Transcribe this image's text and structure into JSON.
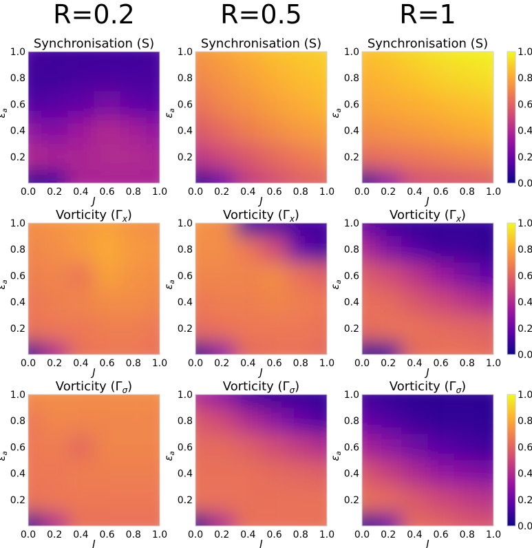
{
  "figure": {
    "column_titles": [
      "R=0.2",
      "R=0.5",
      "R=1"
    ]
  },
  "colormap": {
    "name": "plasma",
    "stops": [
      "#0d0887",
      "#5c01a6",
      "#9c179e",
      "#cc4778",
      "#ed7953",
      "#fdb42f",
      "#f0f921"
    ]
  },
  "chart_data": [
    {
      "type": "heatmap",
      "title": "Synchronisation (S)",
      "column": "R=0.2",
      "row": 0,
      "xlabel": "J",
      "ylabel": "εa",
      "xlim": [
        0,
        1
      ],
      "ylim": [
        0,
        1
      ],
      "clim": [
        0,
        1
      ],
      "grid": false,
      "xticks": [
        "0.0",
        "0.2",
        "0.4",
        "0.6",
        "0.8",
        "1.0"
      ],
      "yticks": [
        "0.2",
        "0.4",
        "0.6",
        "0.8",
        "1.0"
      ],
      "x": [
        0.0,
        0.2,
        0.4,
        0.6,
        0.8,
        1.0
      ],
      "y": [
        1.0,
        0.8,
        0.6,
        0.4,
        0.2,
        0.0
      ],
      "z": [
        [
          0.12,
          0.1,
          0.1,
          0.11,
          0.1,
          0.12
        ],
        [
          0.1,
          0.1,
          0.12,
          0.12,
          0.12,
          0.12
        ],
        [
          0.14,
          0.16,
          0.18,
          0.24,
          0.18,
          0.16
        ],
        [
          0.3,
          0.26,
          0.34,
          0.4,
          0.36,
          0.3
        ],
        [
          0.4,
          0.38,
          0.38,
          0.4,
          0.4,
          0.38
        ],
        [
          0.05,
          0.1,
          0.38,
          0.38,
          0.38,
          0.38
        ]
      ],
      "colorbar": false
    },
    {
      "type": "heatmap",
      "title": "Synchronisation (S)",
      "column": "R=0.5",
      "row": 0,
      "xlabel": "J",
      "ylabel": "εa",
      "xlim": [
        0,
        1
      ],
      "ylim": [
        0,
        1
      ],
      "clim": [
        0,
        1
      ],
      "grid": false,
      "xticks": [
        "0.0",
        "0.2",
        "0.4",
        "0.6",
        "0.8",
        "1.0"
      ],
      "yticks": [
        "0.2",
        "0.4",
        "0.6",
        "0.8",
        "1.0"
      ],
      "x": [
        0.0,
        0.2,
        0.4,
        0.6,
        0.8,
        1.0
      ],
      "y": [
        1.0,
        0.8,
        0.6,
        0.4,
        0.2,
        0.0
      ],
      "z": [
        [
          0.74,
          0.78,
          0.82,
          0.86,
          0.88,
          0.9
        ],
        [
          0.7,
          0.74,
          0.78,
          0.82,
          0.85,
          0.87
        ],
        [
          0.64,
          0.7,
          0.74,
          0.78,
          0.81,
          0.84
        ],
        [
          0.56,
          0.62,
          0.68,
          0.72,
          0.76,
          0.78
        ],
        [
          0.44,
          0.5,
          0.56,
          0.62,
          0.66,
          0.7
        ],
        [
          0.05,
          0.2,
          0.46,
          0.52,
          0.58,
          0.6
        ]
      ],
      "colorbar": false
    },
    {
      "type": "heatmap",
      "title": "Synchronisation (S)",
      "column": "R=1",
      "row": 0,
      "xlabel": "J",
      "ylabel": "εa",
      "xlim": [
        0,
        1
      ],
      "ylim": [
        0,
        1
      ],
      "clim": [
        0,
        1
      ],
      "grid": false,
      "xticks": [
        "0.0",
        "0.2",
        "0.4",
        "0.6",
        "0.8",
        "1.0"
      ],
      "yticks": [
        "0.2",
        "0.4",
        "0.6",
        "0.8",
        "1.0"
      ],
      "x": [
        0.0,
        0.2,
        0.4,
        0.6,
        0.8,
        1.0
      ],
      "y": [
        1.0,
        0.8,
        0.6,
        0.4,
        0.2,
        0.0
      ],
      "z": [
        [
          0.86,
          0.88,
          0.92,
          0.95,
          0.97,
          0.98
        ],
        [
          0.82,
          0.84,
          0.87,
          0.9,
          0.92,
          0.94
        ],
        [
          0.78,
          0.8,
          0.82,
          0.84,
          0.86,
          0.88
        ],
        [
          0.72,
          0.74,
          0.76,
          0.78,
          0.8,
          0.82
        ],
        [
          0.62,
          0.64,
          0.66,
          0.68,
          0.7,
          0.72
        ],
        [
          0.05,
          0.3,
          0.52,
          0.54,
          0.56,
          0.58
        ]
      ],
      "colorbar": true,
      "colorbar_ticks": [
        "0.0",
        "0.2",
        "0.4",
        "0.6",
        "0.8",
        "1.0"
      ]
    },
    {
      "type": "heatmap",
      "title": "Vorticity (Γx)",
      "column": "R=0.2",
      "row": 1,
      "xlabel": "J",
      "ylabel": "εa",
      "xlim": [
        0,
        1
      ],
      "ylim": [
        0,
        1
      ],
      "clim": [
        0,
        1
      ],
      "grid": false,
      "xticks": [
        "0.0",
        "0.2",
        "0.4",
        "0.6",
        "0.8",
        "1.0"
      ],
      "yticks": [
        "0.2",
        "0.4",
        "0.6",
        "0.8",
        "1.0"
      ],
      "x": [
        0.0,
        0.2,
        0.4,
        0.6,
        0.8,
        1.0
      ],
      "y": [
        1.0,
        0.8,
        0.6,
        0.4,
        0.2,
        0.0
      ],
      "z": [
        [
          0.72,
          0.74,
          0.76,
          0.78,
          0.74,
          0.72
        ],
        [
          0.7,
          0.72,
          0.76,
          0.8,
          0.76,
          0.74
        ],
        [
          0.68,
          0.7,
          0.66,
          0.78,
          0.74,
          0.72
        ],
        [
          0.66,
          0.68,
          0.7,
          0.72,
          0.72,
          0.7
        ],
        [
          0.64,
          0.66,
          0.66,
          0.68,
          0.68,
          0.66
        ],
        [
          0.05,
          0.4,
          0.64,
          0.66,
          0.66,
          0.64
        ]
      ],
      "colorbar": false
    },
    {
      "type": "heatmap",
      "title": "Vorticity (Γx)",
      "column": "R=0.5",
      "row": 1,
      "xlabel": "J",
      "ylabel": "εa",
      "xlim": [
        0,
        1
      ],
      "ylim": [
        0,
        1
      ],
      "clim": [
        0,
        1
      ],
      "grid": false,
      "xticks": [
        "0.0",
        "0.2",
        "0.4",
        "0.6",
        "0.8",
        "1.0"
      ],
      "yticks": [
        "0.2",
        "0.4",
        "0.6",
        "0.8",
        "1.0"
      ],
      "x": [
        0.0,
        0.2,
        0.4,
        0.6,
        0.8,
        1.0
      ],
      "y": [
        1.0,
        0.8,
        0.6,
        0.4,
        0.2,
        0.0
      ],
      "z": [
        [
          0.74,
          0.72,
          0.1,
          0.14,
          0.1,
          0.12
        ],
        [
          0.72,
          0.72,
          0.66,
          0.52,
          0.2,
          0.1
        ],
        [
          0.7,
          0.7,
          0.7,
          0.72,
          0.64,
          0.58
        ],
        [
          0.66,
          0.68,
          0.68,
          0.7,
          0.68,
          0.66
        ],
        [
          0.62,
          0.64,
          0.66,
          0.66,
          0.66,
          0.64
        ],
        [
          0.05,
          0.3,
          0.62,
          0.64,
          0.64,
          0.62
        ]
      ],
      "colorbar": false
    },
    {
      "type": "heatmap",
      "title": "Vorticity (Γx)",
      "column": "R=1",
      "row": 1,
      "xlabel": "J",
      "ylabel": "εa",
      "xlim": [
        0,
        1
      ],
      "ylim": [
        0,
        1
      ],
      "clim": [
        0,
        1
      ],
      "grid": false,
      "xticks": [
        "0.0",
        "0.2",
        "0.4",
        "0.6",
        "0.8",
        "1.0"
      ],
      "yticks": [
        "0.2",
        "0.4",
        "0.6",
        "0.8",
        "1.0"
      ],
      "x": [
        0.0,
        0.2,
        0.4,
        0.6,
        0.8,
        1.0
      ],
      "y": [
        1.0,
        0.8,
        0.6,
        0.4,
        0.2,
        0.0
      ],
      "z": [
        [
          0.2,
          0.1,
          0.08,
          0.08,
          0.08,
          0.08
        ],
        [
          0.4,
          0.26,
          0.16,
          0.1,
          0.1,
          0.06
        ],
        [
          0.58,
          0.52,
          0.44,
          0.34,
          0.24,
          0.16
        ],
        [
          0.64,
          0.62,
          0.56,
          0.5,
          0.44,
          0.38
        ],
        [
          0.62,
          0.64,
          0.64,
          0.62,
          0.6,
          0.58
        ],
        [
          0.05,
          0.1,
          0.62,
          0.64,
          0.64,
          0.62
        ]
      ],
      "colorbar": true,
      "colorbar_ticks": [
        "0.0",
        "0.2",
        "0.4",
        "0.6",
        "0.8",
        "1.0"
      ]
    },
    {
      "type": "heatmap",
      "title": "Vorticity (Γσ)",
      "column": "R=0.2",
      "row": 2,
      "xlabel": "J",
      "ylabel": "εa",
      "xlim": [
        0,
        1
      ],
      "ylim": [
        0,
        1
      ],
      "clim": [
        0,
        1
      ],
      "grid": false,
      "xticks": [
        "0.0",
        "0.2",
        "0.4",
        "0.6",
        "0.8",
        "1.0"
      ],
      "yticks": [
        "0.2",
        "0.4",
        "0.6",
        "0.8",
        "1.0"
      ],
      "x": [
        0.0,
        0.2,
        0.4,
        0.6,
        0.8,
        1.0
      ],
      "y": [
        1.0,
        0.8,
        0.6,
        0.4,
        0.2,
        0.0
      ],
      "z": [
        [
          0.72,
          0.72,
          0.72,
          0.72,
          0.72,
          0.72
        ],
        [
          0.66,
          0.7,
          0.7,
          0.7,
          0.7,
          0.7
        ],
        [
          0.66,
          0.68,
          0.62,
          0.7,
          0.7,
          0.7
        ],
        [
          0.66,
          0.66,
          0.68,
          0.68,
          0.68,
          0.68
        ],
        [
          0.64,
          0.66,
          0.66,
          0.66,
          0.66,
          0.66
        ],
        [
          0.05,
          0.4,
          0.64,
          0.64,
          0.64,
          0.64
        ]
      ],
      "colorbar": false
    },
    {
      "type": "heatmap",
      "title": "Vorticity (Γσ)",
      "column": "R=0.5",
      "row": 2,
      "xlabel": "J",
      "ylabel": "εa",
      "xlim": [
        0,
        1
      ],
      "ylim": [
        0,
        1
      ],
      "clim": [
        0,
        1
      ],
      "grid": false,
      "xticks": [
        "0.0",
        "0.2",
        "0.4",
        "0.6",
        "0.8",
        "1.0"
      ],
      "yticks": [
        "0.2",
        "0.4",
        "0.6",
        "0.8",
        "1.0"
      ],
      "x": [
        0.0,
        0.2,
        0.4,
        0.6,
        0.8,
        1.0
      ],
      "y": [
        1.0,
        0.8,
        0.6,
        0.4,
        0.2,
        0.0
      ],
      "z": [
        [
          0.4,
          0.3,
          0.12,
          0.08,
          0.08,
          0.08
        ],
        [
          0.56,
          0.5,
          0.4,
          0.3,
          0.2,
          0.12
        ],
        [
          0.62,
          0.62,
          0.58,
          0.52,
          0.46,
          0.4
        ],
        [
          0.64,
          0.64,
          0.64,
          0.62,
          0.6,
          0.58
        ],
        [
          0.64,
          0.64,
          0.64,
          0.64,
          0.64,
          0.64
        ],
        [
          0.05,
          0.4,
          0.64,
          0.64,
          0.64,
          0.64
        ]
      ],
      "colorbar": false
    },
    {
      "type": "heatmap",
      "title": "Vorticity (Γσ)",
      "column": "R=1",
      "row": 2,
      "xlabel": "J",
      "ylabel": "εa",
      "xlim": [
        0,
        1
      ],
      "ylim": [
        0,
        1
      ],
      "clim": [
        0,
        1
      ],
      "grid": false,
      "xticks": [
        "0.0",
        "0.2",
        "0.4",
        "0.6",
        "0.8",
        "1.0"
      ],
      "yticks": [
        "0.2",
        "0.4",
        "0.6",
        "0.8",
        "1.0"
      ],
      "x": [
        0.0,
        0.2,
        0.4,
        0.6,
        0.8,
        1.0
      ],
      "y": [
        1.0,
        0.8,
        0.6,
        0.4,
        0.2,
        0.0
      ],
      "z": [
        [
          0.1,
          0.08,
          0.06,
          0.06,
          0.06,
          0.06
        ],
        [
          0.2,
          0.14,
          0.1,
          0.08,
          0.08,
          0.06
        ],
        [
          0.38,
          0.3,
          0.22,
          0.16,
          0.12,
          0.1
        ],
        [
          0.56,
          0.48,
          0.4,
          0.32,
          0.28,
          0.24
        ],
        [
          0.64,
          0.62,
          0.56,
          0.5,
          0.46,
          0.42
        ],
        [
          0.05,
          0.2,
          0.62,
          0.6,
          0.56,
          0.54
        ]
      ],
      "colorbar": true,
      "colorbar_ticks": [
        "0.0",
        "0.2",
        "0.4",
        "0.6",
        "0.8",
        "1.0"
      ]
    }
  ]
}
